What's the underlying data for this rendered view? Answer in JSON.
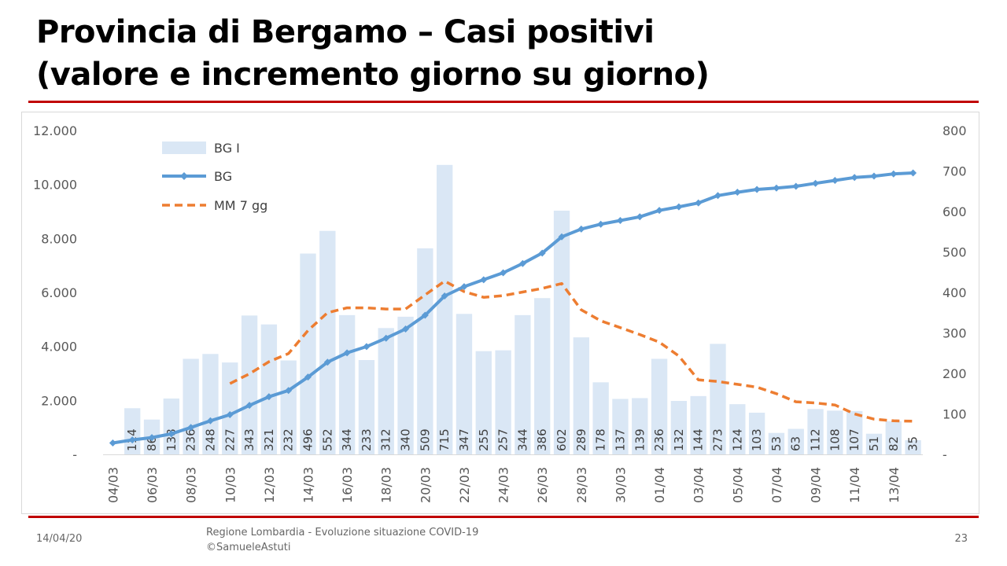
{
  "slide": {
    "title_line1": "Provincia di Bergamo – Casi positivi",
    "title_line2": "(valore e incremento giorno su giorno)",
    "footer_date": "14/04/20",
    "footer_source_line1": "Regione Lombardia - Evoluzione situazione COVID-19",
    "footer_source_line2": "©SamueleAstuti",
    "page_number": "23"
  },
  "colors": {
    "bars": "#dae7f5",
    "line": "#5b9bd5",
    "moving_average": "#ed7d31",
    "axis_text": "#595959",
    "bar_label": "#404040",
    "grid": "#d9d9d9",
    "rule": "#c00000"
  },
  "chart_data": {
    "type": "bar",
    "categories": [
      "04/03",
      "05/03",
      "06/03",
      "07/03",
      "08/03",
      "09/03",
      "10/03",
      "11/03",
      "12/03",
      "13/03",
      "14/03",
      "15/03",
      "16/03",
      "17/03",
      "18/03",
      "19/03",
      "20/03",
      "21/03",
      "22/03",
      "23/03",
      "24/03",
      "25/03",
      "26/03",
      "27/03",
      "28/03",
      "29/03",
      "30/03",
      "31/03",
      "01/04",
      "02/04",
      "03/04",
      "04/04",
      "05/04",
      "06/04",
      "07/04",
      "08/04",
      "09/04",
      "10/04",
      "11/04",
      "12/04",
      "13/04",
      "14/04"
    ],
    "x_tick_labels": [
      "04/03",
      "06/03",
      "08/03",
      "10/03",
      "12/03",
      "14/03",
      "16/03",
      "18/03",
      "20/03",
      "22/03",
      "24/03",
      "26/03",
      "28/03",
      "30/03",
      "01/04",
      "03/04",
      "05/04",
      "07/04",
      "09/04",
      "11/04",
      "13/04"
    ],
    "series": [
      {
        "name": "BG I",
        "kind": "bar",
        "axis": "right",
        "values": [
          null,
          114,
          86,
          138,
          236,
          248,
          227,
          343,
          321,
          232,
          496,
          552,
          344,
          233,
          312,
          340,
          509,
          715,
          347,
          255,
          257,
          344,
          386,
          602,
          289,
          178,
          137,
          139,
          236,
          132,
          144,
          273,
          124,
          103,
          53,
          63,
          112,
          108,
          107,
          51,
          82,
          35
        ]
      },
      {
        "name": "BG",
        "kind": "line",
        "axis": "left",
        "values": [
          423,
          537,
          623,
          761,
          997,
          1245,
          1472,
          1815,
          2136,
          2368,
          2864,
          3416,
          3760,
          3993,
          4305,
          4645,
          5154,
          5869,
          6216,
          6471,
          6728,
          7072,
          7458,
          8060,
          8349,
          8527,
          8664,
          8803,
          9039,
          9171,
          9315,
          9588,
          9712,
          9815,
          9868,
          9931,
          10043,
          10151,
          10258,
          10309,
          10391,
          10426
        ]
      },
      {
        "name": "MM 7 gg",
        "kind": "line",
        "dashed": true,
        "axis": "right",
        "values": [
          null,
          null,
          null,
          null,
          null,
          null,
          175,
          199,
          229,
          249,
          306,
          350,
          362,
          362,
          359,
          359,
          394,
          428,
          402,
          388,
          392,
          401,
          410,
          422,
          357,
          330,
          313,
          296,
          277,
          243,
          184,
          180,
          173,
          166,
          150,
          130,
          127,
          122,
          100,
          87,
          83,
          82
        ]
      }
    ],
    "y_left": {
      "ticks": [
        "-",
        "2.000",
        "4.000",
        "6.000",
        "8.000",
        "10.000",
        "12.000"
      ],
      "ylim": [
        0,
        12000
      ]
    },
    "y_right": {
      "ticks": [
        "-",
        "100",
        "200",
        "300",
        "400",
        "500",
        "600",
        "700",
        "800"
      ],
      "ylim": [
        0,
        800
      ]
    },
    "legend_position": "top-left",
    "grid": false
  }
}
